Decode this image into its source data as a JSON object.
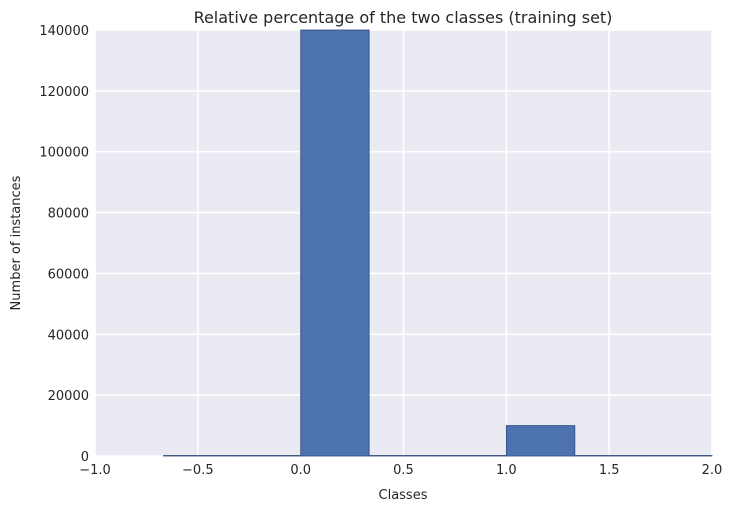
{
  "chart_data": {
    "type": "bar",
    "title": "Relative percentage of the two classes (training set)",
    "xlabel": "Classes",
    "ylabel": "Number of instances",
    "xlim": [
      -1.0,
      2.0
    ],
    "ylim": [
      0,
      140000
    ],
    "xticks": [
      -1.0,
      -0.5,
      0.0,
      0.5,
      1.0,
      1.5,
      2.0
    ],
    "xtick_labels": [
      "−1.0",
      "−0.5",
      "0.0",
      "0.5",
      "1.0",
      "1.5",
      "2.0"
    ],
    "yticks": [
      0,
      20000,
      40000,
      60000,
      80000,
      100000,
      120000,
      140000
    ],
    "ytick_labels": [
      "0",
      "20000",
      "40000",
      "60000",
      "80000",
      "100000",
      "120000",
      "140000"
    ],
    "grid": true,
    "bars": [
      {
        "x0": -0.667,
        "x1": -0.333,
        "value": 0
      },
      {
        "x0": -0.333,
        "x1": 0.0,
        "value": 0
      },
      {
        "x0": 0.0,
        "x1": 0.333,
        "value": 143000
      },
      {
        "x0": 0.333,
        "x1": 0.667,
        "value": 0
      },
      {
        "x0": 0.667,
        "x1": 1.0,
        "value": 0
      },
      {
        "x0": 1.0,
        "x1": 1.333,
        "value": 10000
      },
      {
        "x0": 1.333,
        "x1": 1.667,
        "value": 0
      },
      {
        "x0": 1.667,
        "x1": 2.0,
        "value": 0
      }
    ],
    "colors": {
      "bar": "#4c72b0",
      "bar_edge": "#2f4a78",
      "plot_bg": "#eaeaf2",
      "grid": "#ffffff"
    }
  }
}
